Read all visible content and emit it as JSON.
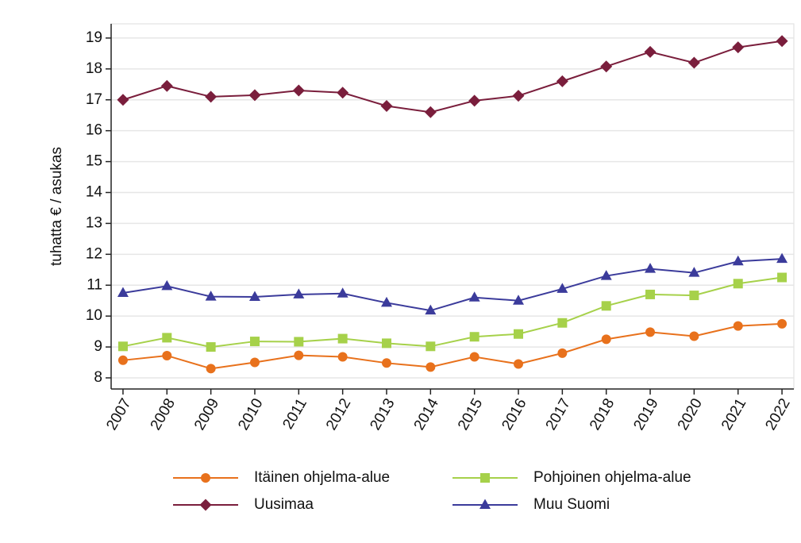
{
  "chart_data": {
    "type": "line",
    "y_label": "tuhatta € / asukas",
    "x": [
      2007,
      2008,
      2009,
      2010,
      2011,
      2012,
      2013,
      2014,
      2015,
      2016,
      2017,
      2018,
      2019,
      2020,
      2021,
      2022
    ],
    "xlim": [
      2006.73,
      2022.27
    ],
    "xticks": [
      2007,
      2008,
      2009,
      2010,
      2011,
      2012,
      2013,
      2014,
      2015,
      2016,
      2017,
      2018,
      2019,
      2020,
      2021,
      2022
    ],
    "ylim": [
      7.64,
      19.46
    ],
    "yticks": [
      8,
      9,
      10,
      11,
      12,
      13,
      14,
      15,
      16,
      17,
      18,
      19
    ],
    "grid": true,
    "legend": "bottom",
    "series": [
      {
        "name": "Itäinen ohjelma-alue",
        "color": "#e8711c",
        "marker": "circle",
        "values": [
          8.57,
          8.72,
          8.3,
          8.5,
          8.73,
          8.68,
          8.48,
          8.35,
          8.68,
          8.45,
          8.8,
          9.25,
          9.48,
          9.35,
          9.68,
          9.75
        ]
      },
      {
        "name": "Pohjoinen ohjelma-alue",
        "color": "#a6d14a",
        "marker": "square",
        "values": [
          9.02,
          9.3,
          9.0,
          9.18,
          9.17,
          9.27,
          9.12,
          9.02,
          9.33,
          9.42,
          9.78,
          10.33,
          10.7,
          10.67,
          11.05,
          11.25
        ]
      },
      {
        "name": "Uusimaa",
        "color": "#7a1e3c",
        "marker": "diamond",
        "values": [
          17.0,
          17.45,
          17.1,
          17.15,
          17.3,
          17.23,
          16.8,
          16.6,
          16.97,
          17.13,
          17.6,
          18.08,
          18.55,
          18.2,
          18.7,
          18.9
        ]
      },
      {
        "name": "Muu Suomi",
        "color": "#3b3b9b",
        "marker": "triangle",
        "values": [
          10.75,
          10.97,
          10.63,
          10.62,
          10.7,
          10.73,
          10.43,
          10.18,
          10.6,
          10.5,
          10.88,
          11.3,
          11.53,
          11.4,
          11.77,
          11.85
        ]
      }
    ]
  }
}
